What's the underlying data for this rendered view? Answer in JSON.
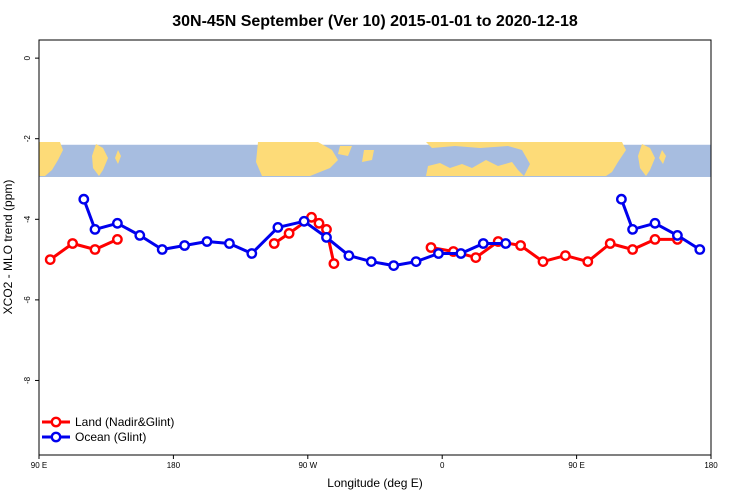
{
  "chart_data": {
    "type": "line",
    "title": "30N-45N September (Ver 10)   2015-01-01 to 2020-12-18",
    "xlabel": "Longitude (deg E)",
    "ylabel": "XCO2 - MLO trend (ppm)",
    "xlim": [
      90,
      540
    ],
    "ylim": [
      -9.85,
      0.45
    ],
    "x_ticks": [
      {
        "value": 90,
        "label": "90 E"
      },
      {
        "value": 180,
        "label": "180"
      },
      {
        "value": 270,
        "label": "90 W"
      },
      {
        "value": 360,
        "label": "0"
      },
      {
        "value": 450,
        "label": "90 E"
      },
      {
        "value": 540,
        "label": "180"
      }
    ],
    "y_ticks": [
      {
        "value": 0,
        "label": "0"
      },
      {
        "value": -2,
        "label": "-2"
      },
      {
        "value": -4,
        "label": "-4"
      },
      {
        "value": -6,
        "label": "-6"
      },
      {
        "value": -8,
        "label": "-8"
      }
    ],
    "map_band": {
      "y_top": -2.15,
      "y_bottom": -2.95,
      "ocean_color": "#a7bde0",
      "land_color": "#fddb78"
    },
    "legend_position": "bottom-left",
    "series": [
      {
        "name": "Land (Nadir&Glint)",
        "color": "#ff0000",
        "segments": [
          {
            "x": [
              97.5,
              112.5,
              127.5,
              142.5
            ],
            "y": [
              -5.0,
              -4.6,
              -4.75,
              -4.5
            ]
          },
          {
            "x": [
              247.5,
              257.5,
              272.5,
              277.5,
              282.5,
              287.5
            ],
            "y": [
              -4.6,
              -4.35,
              -3.95,
              -4.1,
              -4.25,
              -5.1
            ]
          },
          {
            "x": [
              352.5,
              367.5,
              382.5,
              397.5,
              412.5,
              427.5,
              442.5,
              457.5,
              472.5,
              487.5,
              502.5,
              517.5
            ],
            "y": [
              -4.7,
              -4.8,
              -4.95,
              -4.55,
              -4.65,
              -5.05,
              -4.9,
              -5.05,
              -4.6,
              -4.75,
              -4.5,
              -4.5
            ]
          }
        ]
      },
      {
        "name": "Ocean (Glint)",
        "color": "#0000ee",
        "segments": [
          {
            "x": [
              120,
              127.5,
              142.5,
              157.5,
              172.5,
              187.5,
              202.5,
              217.5,
              232.5,
              250,
              267.5,
              282.5,
              297.5,
              312.5,
              327.5,
              342.5,
              357.5,
              372.5,
              387.5,
              402.5
            ],
            "y": [
              -3.5,
              -4.25,
              -4.1,
              -4.4,
              -4.75,
              -4.65,
              -4.55,
              -4.6,
              -4.85,
              -4.2,
              -4.05,
              -4.45,
              -4.9,
              -5.05,
              -5.15,
              -5.05,
              -4.85,
              -4.85,
              -4.6,
              -4.6
            ]
          },
          {
            "x": [
              480,
              487.5,
              502.5,
              517.5,
              532.5
            ],
            "y": [
              -3.5,
              -4.25,
              -4.1,
              -4.4,
              -4.75
            ]
          }
        ]
      }
    ]
  }
}
